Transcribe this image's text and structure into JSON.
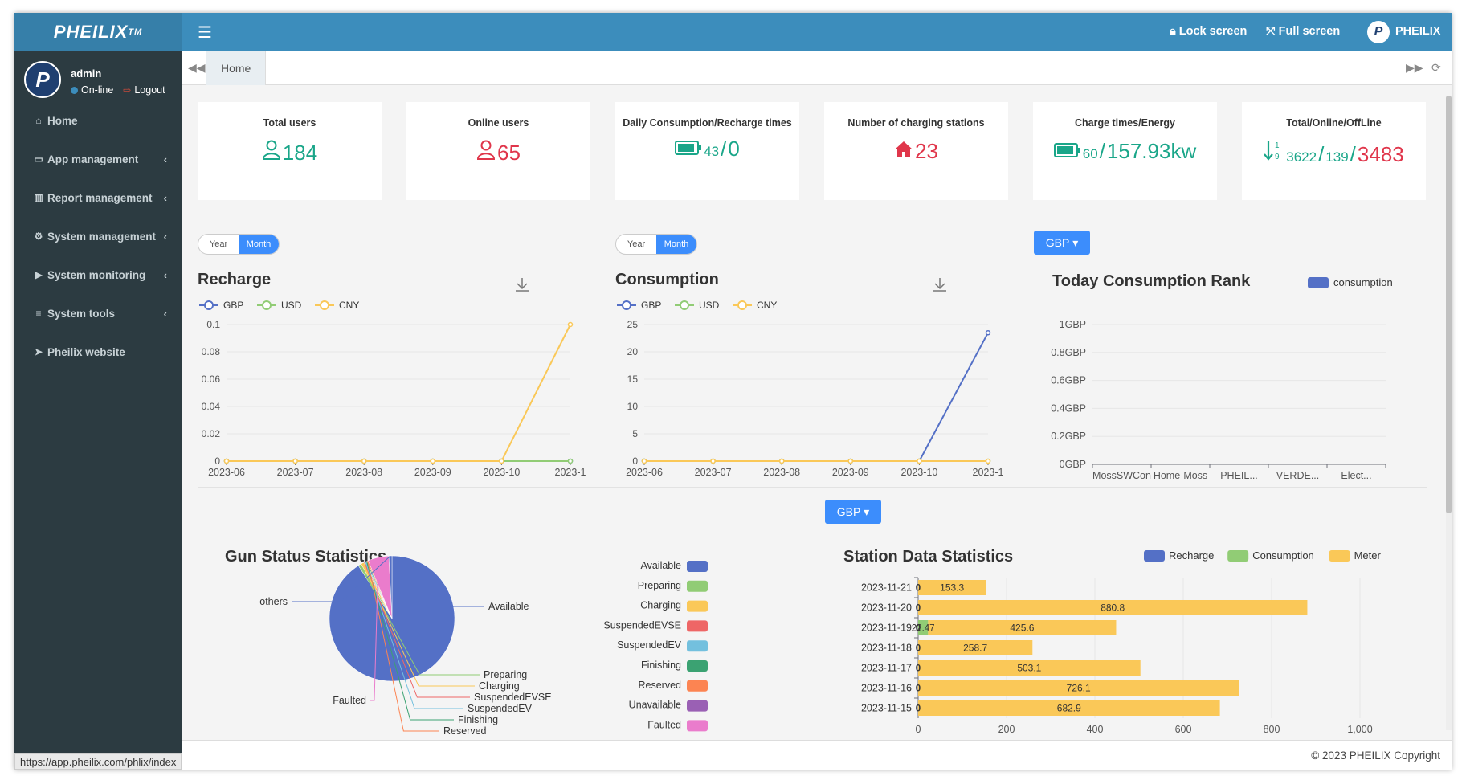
{
  "sidebar": {
    "logo": "PHEILIX",
    "logo_tm": "TM",
    "user": {
      "name": "admin",
      "status": "On-line",
      "logout": "Logout"
    },
    "items": [
      {
        "icon": "home-icon",
        "label": "Home",
        "has_children": false
      },
      {
        "icon": "desktop-icon",
        "label": "App management",
        "has_children": true
      },
      {
        "icon": "bar-chart-icon",
        "label": "Report management",
        "has_children": true
      },
      {
        "icon": "gear-icon",
        "label": "System management",
        "has_children": true
      },
      {
        "icon": "video-camera-icon",
        "label": "System monitoring",
        "has_children": true
      },
      {
        "icon": "list-icon",
        "label": "System tools",
        "has_children": true
      },
      {
        "icon": "paper-plane-icon",
        "label": "Pheilix website",
        "has_children": false
      }
    ]
  },
  "header": {
    "lock_screen": "Lock screen",
    "full_screen": "Full screen",
    "brand": "PHEILIX"
  },
  "tabs": {
    "home": "Home"
  },
  "stats": [
    {
      "title": "Total users",
      "value": "184",
      "icon": "user-icon",
      "color": "#1aa689"
    },
    {
      "title": "Online users",
      "value": "65",
      "icon": "user-icon",
      "color": "#e0364b"
    },
    {
      "title": "Daily Consumption/Recharge times",
      "value_a": "43",
      "sep": "/",
      "value_b": "0",
      "icon": "battery-icon",
      "color": "#1aa689"
    },
    {
      "title": "Number of charging stations",
      "value": "23",
      "icon": "home-icon",
      "color": "#e0364b"
    },
    {
      "title": "Charge times/Energy",
      "value_a": "60",
      "sep": "/",
      "value_b": "157.93kw",
      "icon": "battery-icon",
      "color": "#1aa689"
    },
    {
      "title": "Total/Online/OffLine",
      "total": "3622",
      "sep1": "/",
      "online": "139",
      "sep2": "/",
      "offline": "3483",
      "icon": "sort-numeric-icon",
      "color": "#1aa689"
    }
  ],
  "recharge_panel": {
    "title": "Recharge",
    "toggle": [
      "Year",
      "Month"
    ],
    "active": "Month"
  },
  "consumption_panel": {
    "title": "Consumption",
    "toggle": [
      "Year",
      "Month"
    ],
    "active": "Month"
  },
  "rank_panel": {
    "currency": "GBP"
  },
  "station_panel": {
    "currency": "GBP"
  },
  "footer": {
    "copyright": "© 2023 PHEILIX Copyright"
  },
  "status_url": "https://app.pheilix.com/phlix/index",
  "colors": {
    "gbp": "#5470c6",
    "usd": "#91cc75",
    "cny": "#fac858",
    "header": "#3c8dbc",
    "sidebar": "#2c3b41"
  },
  "chart_data": [
    {
      "type": "line",
      "title": "Recharge",
      "x": [
        "2023-06",
        "2023-07",
        "2023-08",
        "2023-09",
        "2023-10",
        "2023-1"
      ],
      "ylim": [
        0,
        0.1
      ],
      "yticks": [
        "0",
        "0.02",
        "0.04",
        "0.06",
        "0.08",
        "0.1"
      ],
      "series": [
        {
          "name": "GBP",
          "values": [
            0,
            0,
            0,
            0,
            0,
            0
          ],
          "color": "#5470c6"
        },
        {
          "name": "USD",
          "values": [
            0,
            0,
            0,
            0,
            0,
            0
          ],
          "color": "#91cc75"
        },
        {
          "name": "CNY",
          "values": [
            0,
            0,
            0,
            0,
            0,
            0.1
          ],
          "color": "#fac858"
        }
      ]
    },
    {
      "type": "line",
      "title": "Consumption",
      "x": [
        "2023-06",
        "2023-07",
        "2023-08",
        "2023-09",
        "2023-10",
        "2023-1"
      ],
      "ylim": [
        0,
        25
      ],
      "yticks": [
        "0",
        "5",
        "10",
        "15",
        "20",
        "25"
      ],
      "series": [
        {
          "name": "GBP",
          "values": [
            0,
            0,
            0,
            0,
            0,
            23.5
          ],
          "color": "#5470c6"
        },
        {
          "name": "USD",
          "values": [
            0,
            0,
            0,
            0,
            0,
            0
          ],
          "color": "#91cc75"
        },
        {
          "name": "CNY",
          "values": [
            0,
            0,
            0,
            0,
            0,
            0
          ],
          "color": "#fac858"
        }
      ]
    },
    {
      "type": "bar",
      "title": "Today Consumption Rank",
      "categories": [
        "MossSWCon",
        "Home-Moss",
        "PHEIL...",
        "VERDE...",
        "Elect..."
      ],
      "yticks": [
        "0GBP",
        "0.2GBP",
        "0.4GBP",
        "0.6GBP",
        "0.8GBP",
        "1GBP"
      ],
      "series": [
        {
          "name": "consumption",
          "values": [
            0,
            0,
            0,
            0,
            0
          ],
          "color": "#5470c6"
        }
      ]
    },
    {
      "type": "pie",
      "title": "Gun Status Statistics",
      "slices": [
        {
          "label": "Available",
          "value": 91,
          "color": "#5470c6"
        },
        {
          "label": "Preparing",
          "value": 0.8,
          "color": "#91cc75"
        },
        {
          "label": "Charging",
          "value": 0.8,
          "color": "#fac858"
        },
        {
          "label": "SuspendedEVSE",
          "value": 0.3,
          "color": "#ee6666"
        },
        {
          "label": "SuspendedEV",
          "value": 0.3,
          "color": "#73c0de"
        },
        {
          "label": "Finishing",
          "value": 0.3,
          "color": "#3ba272"
        },
        {
          "label": "Reserved",
          "value": 0.3,
          "color": "#fc8452"
        },
        {
          "label": "Unavailable",
          "value": 0,
          "color": "#9a60b4"
        },
        {
          "label": "Faulted",
          "value": 5.4,
          "color": "#ea7ccc"
        },
        {
          "label": "others",
          "value": 0.8,
          "color": "#5470c6"
        }
      ]
    },
    {
      "type": "bar",
      "title": "Station Data Statistics",
      "orientation": "horizontal",
      "categories": [
        "2023-11-21",
        "2023-11-20",
        "2023-11-19",
        "2023-11-18",
        "2023-11-17",
        "2023-11-16",
        "2023-11-15"
      ],
      "xlim": [
        0,
        1000
      ],
      "xticks": [
        "0",
        "200",
        "400",
        "600",
        "800",
        "1,000"
      ],
      "series": [
        {
          "name": "Recharge",
          "values": [
            0,
            0,
            0,
            0,
            0,
            0,
            0
          ],
          "labels": [
            "0",
            "0",
            "0",
            "0",
            "0",
            "0",
            "0"
          ],
          "color": "#5470c6"
        },
        {
          "name": "Consumption",
          "values": [
            0,
            0,
            22.47,
            0,
            0,
            0,
            0
          ],
          "labels": [
            "",
            "",
            "22.47",
            "",
            "",
            "",
            ""
          ],
          "color": "#91cc75"
        },
        {
          "name": "Meter",
          "values": [
            153.3,
            880.8,
            425.6,
            258.7,
            503.1,
            726.1,
            682.9
          ],
          "labels": [
            "153.3",
            "880.8",
            "425.6",
            "258.7",
            "503.1",
            "726.1",
            "682.9"
          ],
          "color": "#fac858"
        }
      ]
    }
  ]
}
